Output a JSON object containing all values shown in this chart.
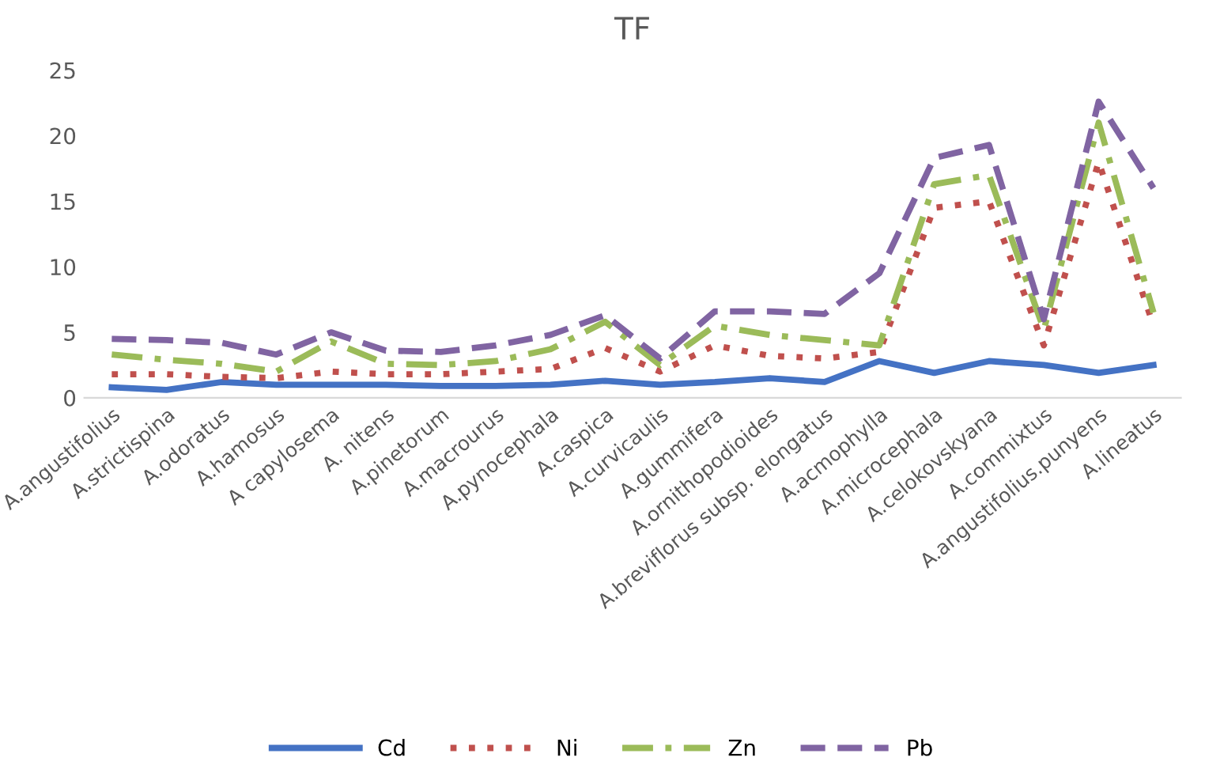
{
  "chart_data": {
    "type": "line",
    "title": "TF",
    "categories": [
      "A.angustifolius",
      "A.strictispina",
      "A.odoratus",
      "A.hamosus",
      "A capylosema",
      "A. nitens",
      "A.pinetorum",
      "A.macrourus",
      "A.pynocephala",
      "A.caspica",
      "A.curvicaulis",
      "A.gummifera",
      "A.ornithopodioides",
      "A.breviflorus subsp. elongatus",
      "A.acmophylla",
      "A.microcephala",
      "A.celokovskyana",
      "A.commixtus",
      "A.angustifolius.punyens",
      "A.lineatus"
    ],
    "series": [
      {
        "name": "Cd",
        "color": "#4472c4",
        "line_style": "solid",
        "values": [
          0.8,
          0.6,
          1.2,
          1.0,
          1.0,
          1.0,
          0.9,
          0.9,
          1.0,
          1.3,
          1.0,
          1.2,
          1.5,
          1.2,
          2.8,
          1.9,
          2.8,
          2.5,
          1.9,
          2.5
        ]
      },
      {
        "name": "Ni",
        "color": "#c0504d",
        "line_style": "dotted",
        "values": [
          1.8,
          1.8,
          1.6,
          1.5,
          2.0,
          1.8,
          1.8,
          2.0,
          2.2,
          3.8,
          2.0,
          4.0,
          3.2,
          3.0,
          3.5,
          14.5,
          15.0,
          4.0,
          18.0,
          5.5
        ]
      },
      {
        "name": "Zn",
        "color": "#9bbb59",
        "line_style": "dashdot",
        "values": [
          3.3,
          2.9,
          2.6,
          2.0,
          4.3,
          2.6,
          2.5,
          2.8,
          3.7,
          5.8,
          2.5,
          5.5,
          4.8,
          4.4,
          4.0,
          16.3,
          17.0,
          5.2,
          21.0,
          6.5
        ]
      },
      {
        "name": "Pb",
        "color": "#8064a2",
        "line_style": "dashed",
        "values": [
          4.5,
          4.4,
          4.2,
          3.3,
          5.0,
          3.6,
          3.5,
          4.0,
          4.8,
          6.3,
          3.0,
          6.6,
          6.6,
          6.4,
          9.5,
          18.3,
          19.3,
          6.0,
          22.6,
          16.0
        ]
      }
    ],
    "ylim": [
      0,
      25
    ],
    "yticks": [
      0,
      5,
      10,
      15,
      20,
      25
    ],
    "grid": false,
    "legend": "bottom",
    "marker": "none"
  }
}
